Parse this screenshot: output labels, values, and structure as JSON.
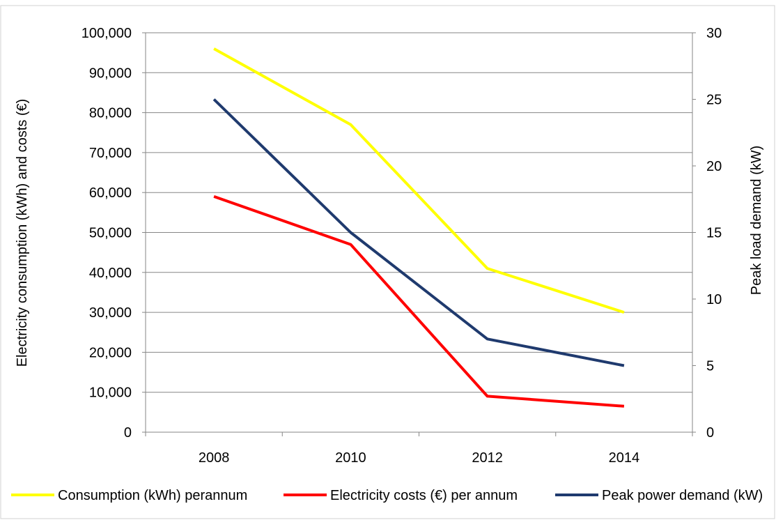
{
  "chart_data": {
    "type": "line",
    "x": [
      "2008",
      "2010",
      "2012",
      "2014"
    ],
    "ylabel_left": "Electricity consumption (kWh) and costs (€)",
    "ylabel_right": "Peak load demand (kW)",
    "ylim_left": [
      0,
      100000
    ],
    "ylim_right": [
      0,
      30
    ],
    "yticks_left": [
      "0",
      "10,000",
      "20,000",
      "30,000",
      "40,000",
      "50,000",
      "60,000",
      "70,000",
      "80,000",
      "90,000",
      "100,000"
    ],
    "yticks_right": [
      "0",
      "5",
      "10",
      "15",
      "20",
      "25",
      "30"
    ],
    "grid": true,
    "legend_position": "bottom",
    "series": [
      {
        "name": "Consumption (kWh) perannum",
        "axis": "left",
        "color": "#ffff00",
        "values": [
          96000,
          77000,
          41000,
          30000
        ]
      },
      {
        "name": "Electricity costs (€) per annum",
        "axis": "left",
        "color": "#ff0000",
        "values": [
          59000,
          47000,
          9000,
          6500
        ]
      },
      {
        "name": "Peak power demand (kW)",
        "axis": "right",
        "color": "#1f3a6e",
        "values": [
          25,
          15,
          7,
          5
        ]
      }
    ]
  }
}
